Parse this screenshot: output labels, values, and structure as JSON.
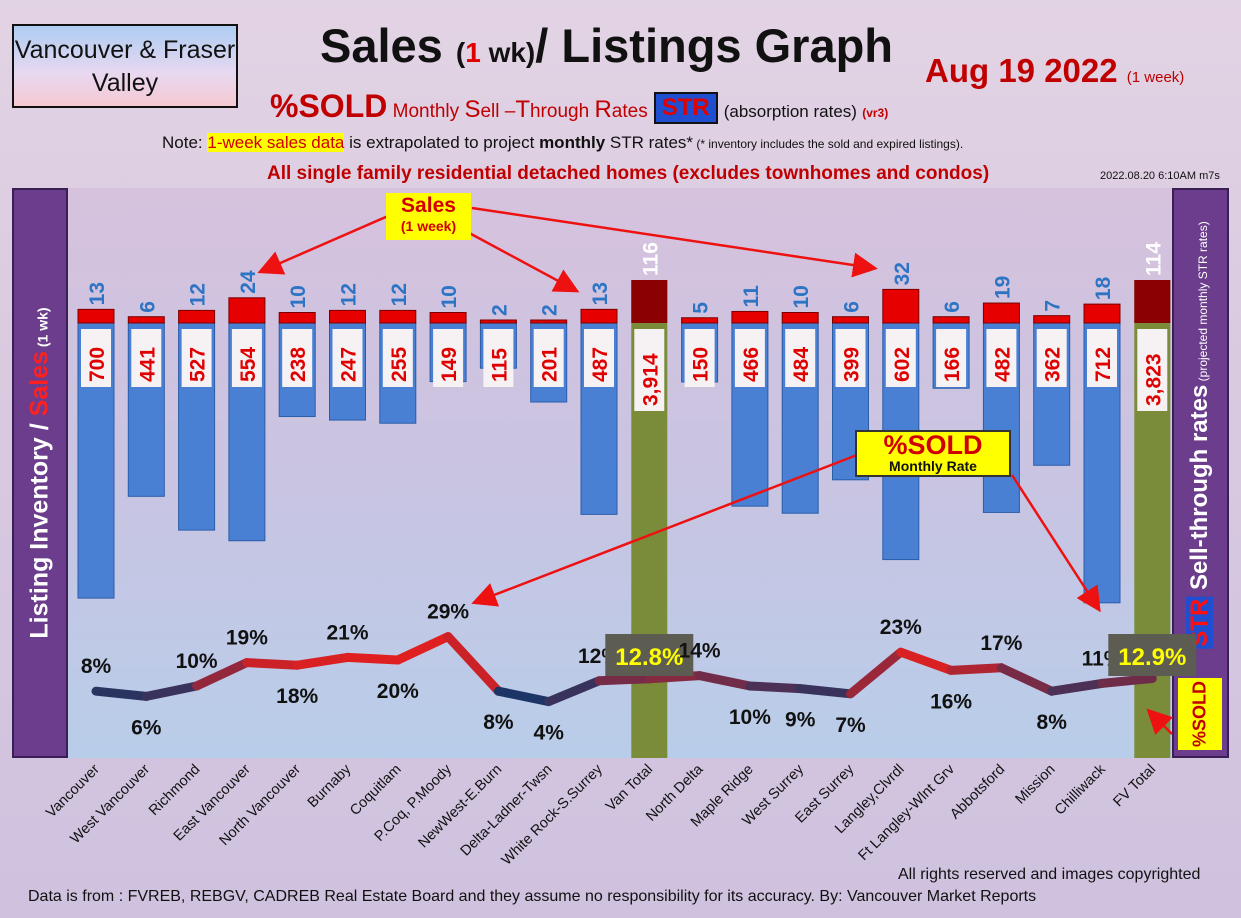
{
  "header": {
    "region": "Vancouver & Fraser Valley",
    "title_part1": "Sales ",
    "title_paren_open": "(",
    "title_num": "1",
    "title_paren_rest": " wk)",
    "title_part2": "/ Listings Graph",
    "date": "Aug 19  2022",
    "date_note": "(1 week)",
    "subtitle_sold": "%SOLD",
    "subtitle_words": [
      "Monthly ",
      "S",
      "ell –",
      "T",
      "hrough ",
      "R",
      "ates"
    ],
    "subtitle_str": "STR",
    "subtitle_absorption": "(absorption rates)",
    "subtitle_version": "(vr3)",
    "note_prefix": "Note: ",
    "note_highlight": "1-week sales data",
    "note_mid": " is extrapolated to project ",
    "note_bold": "monthly",
    "note_end": " STR rates*",
    "note_small": " (* inventory includes the sold and expired listings).",
    "headline": "All single family residential detached homes (excludes townhomes and condos)",
    "timestamp": "2022.08.20 6:10AM m7s"
  },
  "axis_labels": {
    "left_a": "Listing Inventory",
    "left_slash": " / ",
    "left_b": "Sales",
    "left_c": " (1 wk)",
    "right_str": "STR",
    "right_main": " Sell-through rates",
    "right_small": " (projected monthly STR rates)",
    "right_sold": "%SOLD"
  },
  "callouts": {
    "sales_a": "Sales",
    "sales_b": "(1 week)",
    "sold_a": "%SOLD",
    "sold_b": "Monthly Rate"
  },
  "footer": {
    "rights": "All rights reserved and  images copyrighted",
    "source": "Data is from : FVREB, REBGV, CADREB Real Estate Board and they assume no responsibility for its accuracy. By: Vancouver Market Reports"
  },
  "colors": {
    "inventory_bar": "#4a80d4",
    "sales_bar": "#e60000",
    "total_bar": "#7a8c3a",
    "total_sales_bar": "#8b0000",
    "str_low": "#1c3566",
    "str_high": "#e02020",
    "sales_label": "#2d74c4",
    "inventory_label": "#e00000"
  },
  "chart_data": {
    "type": "bar",
    "categories": [
      "Vancouver",
      "West Vancouver",
      "Richmond",
      "East Vancouver",
      "North Vancouver",
      "Burnaby",
      "Coquitlam",
      "P.Coq, P.Moody",
      "NewWest-E.Burn",
      "Delta-Ladner-Twsn",
      "White Rock-S.Surrey",
      "Van Total",
      "North Delta",
      "Maple Ridge",
      "West Surrey",
      "East Surrey",
      "Langley,Clvrdl",
      "Ft Langley-Wlnt Grv",
      "Abbotsford",
      "Mission",
      "Chilliwack",
      "FV Total"
    ],
    "series": [
      {
        "name": "Sales",
        "values": [
          13,
          6,
          12,
          24,
          10,
          12,
          12,
          10,
          2,
          2,
          13,
          116,
          5,
          11,
          10,
          6,
          32,
          6,
          19,
          7,
          18,
          114
        ]
      },
      {
        "name": "Listing Inventory",
        "values": [
          700,
          441,
          527,
          554,
          238,
          247,
          255,
          149,
          115,
          201,
          487,
          3914,
          150,
          466,
          484,
          399,
          602,
          166,
          482,
          362,
          712,
          3823
        ]
      },
      {
        "name": "Sell-through rates",
        "values": [
          8,
          6,
          10,
          19,
          18,
          21,
          20,
          29,
          8,
          4,
          12,
          12.8,
          14,
          10,
          9,
          7,
          23,
          16,
          17,
          8,
          11,
          12.9
        ]
      }
    ],
    "sales_labels": [
      "13",
      "6",
      "12",
      "24",
      "10",
      "12",
      "12",
      "10",
      "2",
      "2",
      "13",
      "116",
      "5",
      "11",
      "10",
      "6",
      "32",
      "6",
      "19",
      "7",
      "18",
      "114"
    ],
    "inventory_labels": [
      "700",
      "441",
      "527",
      "554",
      "238",
      "247",
      "255",
      "149",
      "115",
      "201",
      "487",
      "3,914",
      "150",
      "466",
      "484",
      "399",
      "602",
      "166",
      "482",
      "362",
      "712",
      "3,823"
    ],
    "str_labels": [
      "8%",
      "6%",
      "10%",
      "19%",
      "18%",
      "21%",
      "20%",
      "29%",
      "8%",
      "4%",
      "12%",
      "12.8%",
      "14%",
      "10%",
      "9%",
      "7%",
      "23%",
      "16%",
      "17%",
      "8%",
      "11%",
      "12.9%"
    ],
    "total_indices": [
      11,
      21
    ]
  }
}
